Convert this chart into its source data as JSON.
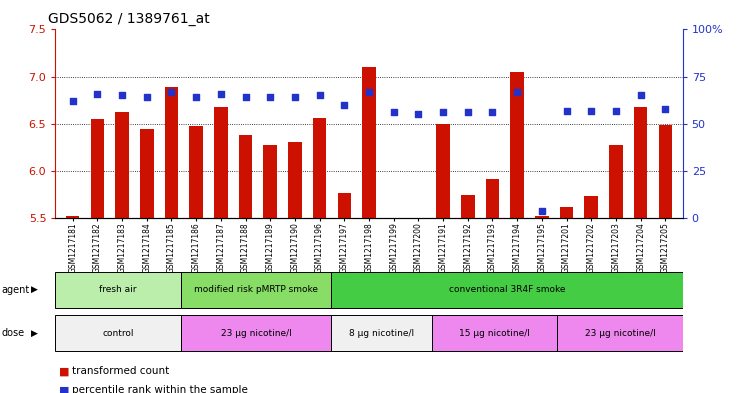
{
  "title": "GDS5062 / 1389761_at",
  "samples": [
    "GSM1217181",
    "GSM1217182",
    "GSM1217183",
    "GSM1217184",
    "GSM1217185",
    "GSM1217186",
    "GSM1217187",
    "GSM1217188",
    "GSM1217189",
    "GSM1217190",
    "GSM1217196",
    "GSM1217197",
    "GSM1217198",
    "GSM1217199",
    "GSM1217200",
    "GSM1217191",
    "GSM1217192",
    "GSM1217193",
    "GSM1217194",
    "GSM1217195",
    "GSM1217201",
    "GSM1217202",
    "GSM1217203",
    "GSM1217204",
    "GSM1217205"
  ],
  "bar_values": [
    5.52,
    6.55,
    6.63,
    6.44,
    6.89,
    6.48,
    6.68,
    6.38,
    6.28,
    6.31,
    6.56,
    5.77,
    7.1,
    5.44,
    5.42,
    6.5,
    5.75,
    5.91,
    7.05,
    5.52,
    5.62,
    5.73,
    6.27,
    6.68,
    6.49
  ],
  "percentile_values": [
    62,
    66,
    65,
    64,
    67,
    64,
    66,
    64,
    64,
    64,
    65,
    60,
    67,
    56,
    55,
    56,
    56,
    56,
    67,
    4,
    57,
    57,
    57,
    65,
    58
  ],
  "ylim_left": [
    5.5,
    7.5
  ],
  "ylim_right": [
    0,
    100
  ],
  "yticks_left": [
    5.5,
    6.0,
    6.5,
    7.0,
    7.5
  ],
  "yticks_right": [
    0,
    25,
    50,
    75,
    100
  ],
  "ytick_right_labels": [
    "0",
    "25",
    "50",
    "75",
    "100%"
  ],
  "bar_color": "#cc1100",
  "dot_color": "#2233cc",
  "agent_groups": [
    {
      "label": "fresh air",
      "start": 0,
      "end": 5,
      "color": "#bbeeaa"
    },
    {
      "label": "modified risk pMRTP smoke",
      "start": 5,
      "end": 11,
      "color": "#88dd66"
    },
    {
      "label": "conventional 3R4F smoke",
      "start": 11,
      "end": 25,
      "color": "#44cc44"
    }
  ],
  "dose_groups": [
    {
      "label": "control",
      "start": 0,
      "end": 5,
      "color": "#f0f0f0"
    },
    {
      "label": "23 μg nicotine/l",
      "start": 5,
      "end": 11,
      "color": "#ee88ee"
    },
    {
      "label": "8 μg nicotine/l",
      "start": 11,
      "end": 15,
      "color": "#f0f0f0"
    },
    {
      "label": "15 μg nicotine/l",
      "start": 15,
      "end": 20,
      "color": "#ee88ee"
    },
    {
      "label": "23 μg nicotine/l",
      "start": 20,
      "end": 25,
      "color": "#ee88ee"
    }
  ],
  "legend_items": [
    {
      "label": "transformed count",
      "color": "#cc1100"
    },
    {
      "label": "percentile rank within the sample",
      "color": "#2233cc"
    }
  ],
  "hgrid_values": [
    6.0,
    6.5,
    7.0
  ],
  "bg_color": "#ffffff"
}
